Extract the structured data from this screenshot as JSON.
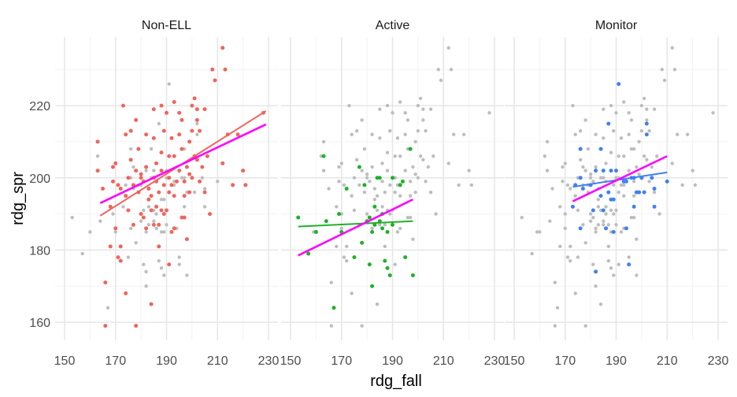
{
  "chart_data": {
    "type": "scatter",
    "xlabel": "rdg_fall",
    "ylabel": "rdg_spr",
    "xlim": [
      150,
      230
    ],
    "ylim": [
      155,
      239
    ],
    "x_ticks": [
      150,
      170,
      190,
      210,
      230
    ],
    "y_ticks": [
      160,
      180,
      200,
      220
    ],
    "x_tick_labels": [
      "150",
      "170",
      "190",
      "210",
      "230"
    ],
    "y_tick_labels": [
      "160",
      "180",
      "200",
      "220"
    ],
    "grid": true,
    "background_color": "#bdbdbd",
    "overall_fit_color": "#ff00ff",
    "panels": [
      {
        "label": "Non-ELL",
        "color": "#f0645c",
        "points": [
          [
            163,
            210
          ],
          [
            163,
            202
          ],
          [
            166,
            171
          ],
          [
            166,
            159
          ],
          [
            168,
            192
          ],
          [
            168,
            181
          ],
          [
            169,
            203
          ],
          [
            169,
            199
          ],
          [
            170,
            204
          ],
          [
            171,
            198
          ],
          [
            171,
            178
          ],
          [
            172,
            177
          ],
          [
            172,
            197
          ],
          [
            173,
            220
          ],
          [
            174,
            212
          ],
          [
            174,
            195
          ],
          [
            174,
            168
          ],
          [
            175,
            200
          ],
          [
            175,
            191
          ],
          [
            176,
            213
          ],
          [
            176,
            205
          ],
          [
            177,
            198
          ],
          [
            177,
            187
          ],
          [
            178,
            216
          ],
          [
            178,
            159
          ],
          [
            179,
            208
          ],
          [
            179,
            196
          ],
          [
            180,
            200
          ],
          [
            180,
            190
          ],
          [
            180,
            201
          ],
          [
            181,
            199
          ],
          [
            181,
            189
          ],
          [
            182,
            212
          ],
          [
            182,
            203
          ],
          [
            182,
            186
          ],
          [
            183,
            197
          ],
          [
            184,
            195
          ],
          [
            184,
            191
          ],
          [
            184,
            165
          ],
          [
            185,
            219
          ],
          [
            185,
            211
          ],
          [
            185,
            200
          ],
          [
            185,
            187
          ],
          [
            186,
            204
          ],
          [
            186,
            199
          ],
          [
            186,
            192
          ],
          [
            187,
            196
          ],
          [
            187,
            181
          ],
          [
            187,
            187
          ],
          [
            188,
            220
          ],
          [
            188,
            207
          ],
          [
            188,
            202
          ],
          [
            188,
            191
          ],
          [
            189,
            213
          ],
          [
            189,
            198
          ],
          [
            190,
            218
          ],
          [
            190,
            191
          ],
          [
            191,
            206
          ],
          [
            191,
            200
          ],
          [
            191,
            196
          ],
          [
            191,
            176
          ],
          [
            192,
            211
          ],
          [
            192,
            198
          ],
          [
            193,
            221
          ],
          [
            193,
            206
          ],
          [
            193,
            195
          ],
          [
            193,
            186
          ],
          [
            194,
            199
          ],
          [
            195,
            218
          ],
          [
            195,
            212
          ],
          [
            195,
            202
          ],
          [
            196,
            216
          ],
          [
            196,
            208
          ],
          [
            197,
            199
          ],
          [
            197,
            195
          ],
          [
            197,
            189
          ],
          [
            198,
            203
          ],
          [
            198,
            183
          ],
          [
            199,
            210
          ],
          [
            199,
            201
          ],
          [
            199,
            196
          ],
          [
            200,
            220
          ],
          [
            200,
            213
          ],
          [
            200,
            200
          ],
          [
            201,
            222
          ],
          [
            201,
            206
          ],
          [
            202,
            219
          ],
          [
            202,
            216
          ],
          [
            202,
            205
          ],
          [
            203,
            199
          ],
          [
            204,
            203
          ],
          [
            205,
            219
          ],
          [
            205,
            196
          ],
          [
            206,
            206
          ],
          [
            208,
            230
          ],
          [
            209,
            227
          ],
          [
            212,
            204
          ],
          [
            212,
            236
          ],
          [
            213,
            230
          ],
          [
            214,
            212
          ],
          [
            216,
            198
          ],
          [
            218,
            212
          ],
          [
            220,
            202
          ],
          [
            221,
            198
          ],
          [
            228,
            218
          ],
          [
            165,
            197
          ],
          [
            170,
            186
          ],
          [
            172,
            181
          ],
          [
            178,
            202
          ],
          [
            183,
            194
          ],
          [
            189,
            190
          ],
          [
            192,
            185
          ],
          [
            196,
            189
          ],
          [
            203,
            213
          ],
          [
            207,
            190
          ]
        ],
        "fit_line": [
          [
            164,
            189.5
          ],
          [
            229,
            218.5
          ]
        ],
        "overall_line": [
          [
            164,
            193
          ],
          [
            229,
            214.8
          ]
        ]
      },
      {
        "label": "Active",
        "color": "#1fb028",
        "points": [
          [
            153,
            189
          ],
          [
            157,
            179
          ],
          [
            160,
            185
          ],
          [
            163,
            206
          ],
          [
            164,
            188
          ],
          [
            167,
            164
          ],
          [
            169,
            190
          ],
          [
            170,
            185
          ],
          [
            172,
            197
          ],
          [
            175,
            178
          ],
          [
            177,
            203
          ],
          [
            178,
            182
          ],
          [
            179,
            198
          ],
          [
            181,
            176
          ],
          [
            181,
            189
          ],
          [
            182,
            185
          ],
          [
            182,
            170
          ],
          [
            183,
            192
          ],
          [
            183,
            187
          ],
          [
            184,
            200
          ],
          [
            185,
            200
          ],
          [
            185,
            188
          ],
          [
            186,
            190
          ],
          [
            187,
            177
          ],
          [
            188,
            175
          ],
          [
            188,
            185
          ],
          [
            189,
            173
          ],
          [
            190,
            187
          ],
          [
            190,
            200
          ],
          [
            193,
            198
          ],
          [
            194,
            199
          ],
          [
            195,
            178
          ],
          [
            197,
            208
          ],
          [
            198,
            173
          ],
          [
            180,
            188
          ],
          [
            186,
            186
          ]
        ],
        "fit_line": [
          [
            153,
            186.5
          ],
          [
            198,
            188
          ]
        ],
        "overall_line": [
          [
            153,
            178.5
          ],
          [
            198,
            194
          ]
        ]
      },
      {
        "label": "Monitor",
        "color": "#3f80f2",
        "points": [
          [
            173,
            192
          ],
          [
            174,
            198
          ],
          [
            176,
            208
          ],
          [
            176,
            200
          ],
          [
            177,
            197
          ],
          [
            180,
            198
          ],
          [
            182,
            202
          ],
          [
            184,
            195
          ],
          [
            184,
            208
          ],
          [
            185,
            202
          ],
          [
            185,
            191
          ],
          [
            186,
            186
          ],
          [
            187,
            196
          ],
          [
            187,
            215
          ],
          [
            188,
            194
          ],
          [
            188,
            202
          ],
          [
            189,
            194
          ],
          [
            189,
            185
          ],
          [
            190,
            202
          ],
          [
            191,
            226
          ],
          [
            193,
            199
          ],
          [
            194,
            186
          ],
          [
            194,
            199
          ],
          [
            195,
            176
          ],
          [
            196,
            200
          ],
          [
            197,
            200
          ],
          [
            197,
            192
          ],
          [
            198,
            196
          ],
          [
            199,
            196
          ],
          [
            200,
            200
          ],
          [
            201,
            196
          ],
          [
            202,
            215
          ],
          [
            202,
            212
          ],
          [
            204,
            200
          ],
          [
            205,
            197
          ],
          [
            205,
            192
          ],
          [
            210,
            199
          ],
          [
            181,
            191
          ],
          [
            176,
            186
          ],
          [
            182,
            174
          ]
        ],
        "fit_line": [
          [
            173,
            197.5
          ],
          [
            210,
            201.5
          ]
        ],
        "overall_line": [
          [
            173,
            193.5
          ],
          [
            210,
            206
          ]
        ]
      }
    ],
    "background_points": [
      [
        153,
        189
      ],
      [
        157,
        179
      ],
      [
        159,
        185
      ],
      [
        160,
        185
      ],
      [
        162,
        206
      ],
      [
        163,
        210
      ],
      [
        163,
        202
      ],
      [
        164,
        188
      ],
      [
        165,
        197
      ],
      [
        166,
        171
      ],
      [
        166,
        159
      ],
      [
        167,
        164
      ],
      [
        168,
        192
      ],
      [
        168,
        181
      ],
      [
        169,
        203
      ],
      [
        169,
        199
      ],
      [
        170,
        204
      ],
      [
        170,
        186
      ],
      [
        170,
        190
      ],
      [
        171,
        198
      ],
      [
        171,
        178
      ],
      [
        172,
        177
      ],
      [
        172,
        197
      ],
      [
        172,
        181
      ],
      [
        173,
        220
      ],
      [
        174,
        212
      ],
      [
        174,
        195
      ],
      [
        174,
        168
      ],
      [
        175,
        200
      ],
      [
        175,
        191
      ],
      [
        175,
        178
      ],
      [
        176,
        213
      ],
      [
        176,
        205
      ],
      [
        177,
        198
      ],
      [
        177,
        187
      ],
      [
        177,
        203
      ],
      [
        178,
        216
      ],
      [
        178,
        159
      ],
      [
        178,
        182
      ],
      [
        178,
        202
      ],
      [
        179,
        208
      ],
      [
        179,
        196
      ],
      [
        179,
        198
      ],
      [
        180,
        200
      ],
      [
        180,
        190
      ],
      [
        180,
        201
      ],
      [
        180,
        188
      ],
      [
        181,
        199
      ],
      [
        181,
        189
      ],
      [
        181,
        176
      ],
      [
        182,
        212
      ],
      [
        182,
        203
      ],
      [
        182,
        186
      ],
      [
        182,
        185
      ],
      [
        182,
        170
      ],
      [
        183,
        197
      ],
      [
        183,
        192
      ],
      [
        183,
        187
      ],
      [
        183,
        194
      ],
      [
        184,
        195
      ],
      [
        184,
        191
      ],
      [
        184,
        165
      ],
      [
        184,
        200
      ],
      [
        185,
        219
      ],
      [
        185,
        211
      ],
      [
        185,
        200
      ],
      [
        185,
        187
      ],
      [
        185,
        188
      ],
      [
        186,
        204
      ],
      [
        186,
        199
      ],
      [
        186,
        192
      ],
      [
        186,
        190
      ],
      [
        186,
        186
      ],
      [
        187,
        196
      ],
      [
        187,
        181
      ],
      [
        187,
        187
      ],
      [
        187,
        177
      ],
      [
        188,
        220
      ],
      [
        188,
        207
      ],
      [
        188,
        202
      ],
      [
        188,
        191
      ],
      [
        188,
        175
      ],
      [
        188,
        185
      ],
      [
        189,
        213
      ],
      [
        189,
        198
      ],
      [
        189,
        173
      ],
      [
        189,
        190
      ],
      [
        190,
        218
      ],
      [
        190,
        191
      ],
      [
        190,
        187
      ],
      [
        190,
        200
      ],
      [
        191,
        206
      ],
      [
        191,
        200
      ],
      [
        191,
        196
      ],
      [
        191,
        176
      ],
      [
        192,
        211
      ],
      [
        192,
        198
      ],
      [
        192,
        185
      ],
      [
        193,
        221
      ],
      [
        193,
        206
      ],
      [
        193,
        195
      ],
      [
        193,
        186
      ],
      [
        193,
        198
      ],
      [
        194,
        199
      ],
      [
        195,
        218
      ],
      [
        195,
        212
      ],
      [
        195,
        202
      ],
      [
        195,
        178
      ],
      [
        196,
        216
      ],
      [
        196,
        208
      ],
      [
        196,
        189
      ],
      [
        197,
        199
      ],
      [
        197,
        195
      ],
      [
        197,
        189
      ],
      [
        197,
        208
      ],
      [
        198,
        203
      ],
      [
        198,
        183
      ],
      [
        198,
        173
      ],
      [
        199,
        210
      ],
      [
        199,
        201
      ],
      [
        199,
        196
      ],
      [
        200,
        220
      ],
      [
        200,
        213
      ],
      [
        200,
        200
      ],
      [
        201,
        222
      ],
      [
        201,
        206
      ],
      [
        202,
        219
      ],
      [
        202,
        216
      ],
      [
        202,
        205
      ],
      [
        203,
        199
      ],
      [
        203,
        213
      ],
      [
        204,
        203
      ],
      [
        205,
        219
      ],
      [
        205,
        196
      ],
      [
        206,
        206
      ],
      [
        207,
        190
      ],
      [
        208,
        230
      ],
      [
        209,
        227
      ],
      [
        212,
        204
      ],
      [
        212,
        236
      ],
      [
        213,
        230
      ],
      [
        214,
        212
      ],
      [
        216,
        198
      ],
      [
        218,
        212
      ],
      [
        220,
        202
      ],
      [
        221,
        198
      ],
      [
        228,
        218
      ]
    ]
  }
}
